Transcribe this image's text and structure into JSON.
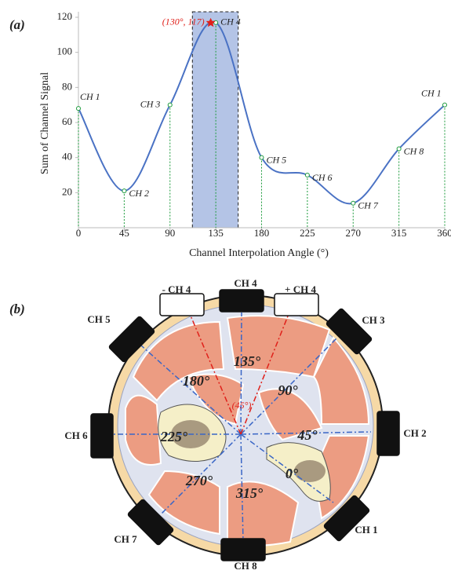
{
  "panel_labels": [
    "(a)",
    "(b)"
  ],
  "chart_data": {
    "type": "line",
    "x_label": "Channel Interpolation Angle (°)",
    "y_label": "Sum of Channel Signal",
    "x": [
      0,
      45,
      90,
      135,
      180,
      225,
      270,
      315,
      360
    ],
    "series": [
      {
        "color": "#4a72c4",
        "values": [
          68,
          21,
          70,
          117,
          40,
          30,
          14,
          45,
          70
        ]
      }
    ],
    "point_labels": [
      "CH 1",
      "CH 2",
      "CH 3",
      "CH 4",
      "CH 5",
      "CH 6",
      "CH 7",
      "CH 8",
      "CH 1"
    ],
    "peak": {
      "x": 130,
      "y": 117,
      "label": "(130°, 117)",
      "color": "#e0201a"
    },
    "highlight_xrange": [
      112,
      157
    ],
    "xlim": [
      0,
      360
    ],
    "xticks": [
      0,
      45,
      90,
      135,
      180,
      225,
      270,
      315,
      360
    ],
    "ylim": [
      0,
      120
    ],
    "yticks": [
      20,
      40,
      60,
      80,
      100,
      120
    ]
  },
  "diagram": {
    "electrodes": [
      "- CH 4",
      "CH 4",
      "+ CH 4",
      "CH 3",
      "CH 2",
      "CH 1",
      "CH 8",
      "CH 7",
      "CH 6",
      "CH 5"
    ],
    "angles": [
      "135°",
      "90°",
      "180°",
      "45°",
      "225°",
      "0°",
      "270°",
      "315°"
    ],
    "offset_angle": "(45°)"
  }
}
